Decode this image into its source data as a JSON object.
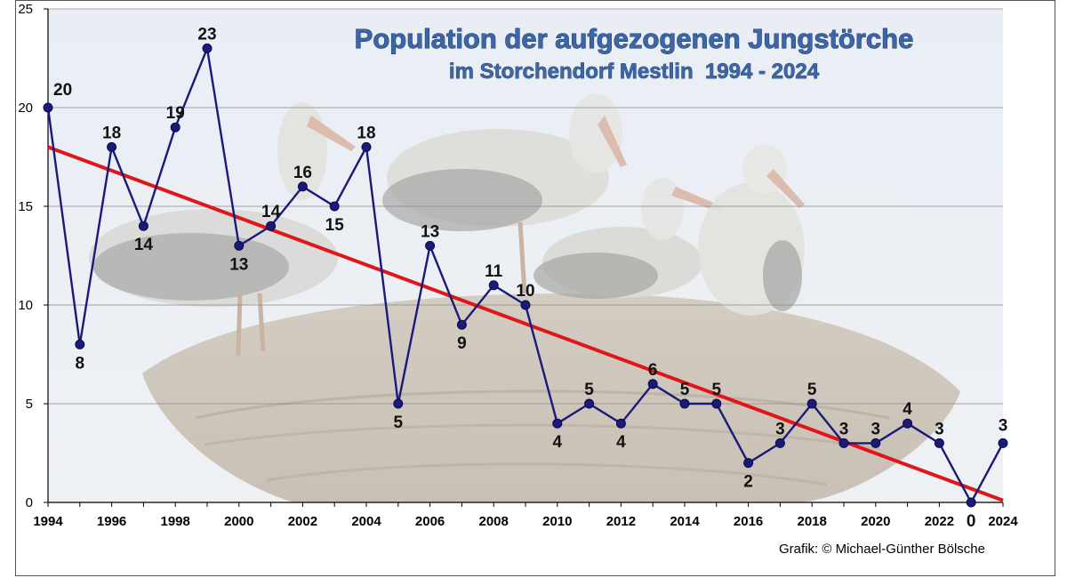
{
  "chart_data": {
    "type": "line",
    "title": "Population der aufgezogenen Jungstörche",
    "subtitle": "im Storchendorf Mestlin  1994 - 2024",
    "credit": "Grafik: © Michael-Günther Bölsche",
    "x": [
      1994,
      1995,
      1996,
      1997,
      1998,
      1999,
      2000,
      2001,
      2002,
      2003,
      2004,
      2005,
      2006,
      2007,
      2008,
      2009,
      2010,
      2011,
      2012,
      2013,
      2014,
      2015,
      2016,
      2017,
      2018,
      2019,
      2020,
      2021,
      2022,
      2023,
      2024
    ],
    "values": [
      20,
      8,
      18,
      14,
      19,
      23,
      13,
      14,
      16,
      15,
      18,
      5,
      13,
      9,
      11,
      10,
      4,
      5,
      4,
      6,
      5,
      5,
      2,
      3,
      5,
      3,
      3,
      4,
      3,
      0,
      3
    ],
    "trendline": {
      "start": [
        1994,
        18.0
      ],
      "end": [
        2024,
        0.1
      ]
    },
    "xticks": [
      "1994",
      "1996",
      "1998",
      "2000",
      "2002",
      "2004",
      "2006",
      "2008",
      "2010",
      "2012",
      "2014",
      "2016",
      "2018",
      "2020",
      "2022",
      "2024"
    ],
    "yticks": [
      "0",
      "5",
      "10",
      "15",
      "20",
      "25"
    ],
    "xlim": [
      1994,
      2024
    ],
    "ylim": [
      0,
      25
    ],
    "grid": "horizontal",
    "series_color": "#1a1a7a",
    "trend_color": "#e0161b",
    "background": "storks on nest photo"
  }
}
